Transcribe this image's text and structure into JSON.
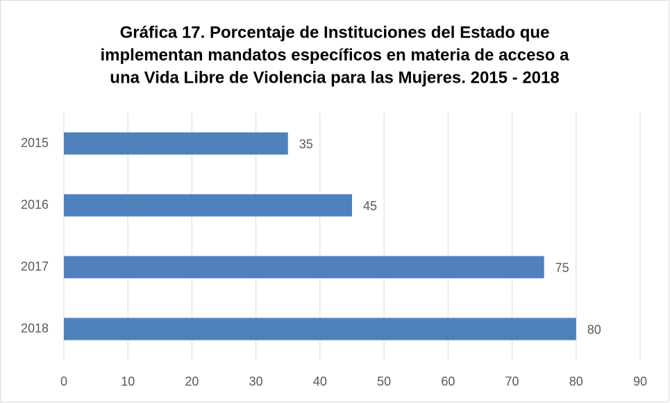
{
  "chart_data": {
    "type": "bar",
    "orientation": "horizontal",
    "title": [
      "Gráfica 17. Porcentaje de Instituciones del Estado que",
      "implementan mandatos específicos en materia de acceso a",
      "una Vida Libre de Violencia para las Mujeres. 2015 - 2018"
    ],
    "categories": [
      "2015",
      "2016",
      "2017",
      "2018"
    ],
    "values": [
      35,
      45,
      75,
      80
    ],
    "color": "#4f81bd",
    "xlim": [
      0,
      90
    ],
    "xticks": [
      0,
      10,
      20,
      30,
      40,
      50,
      60,
      70,
      80,
      90
    ],
    "grid": true
  }
}
